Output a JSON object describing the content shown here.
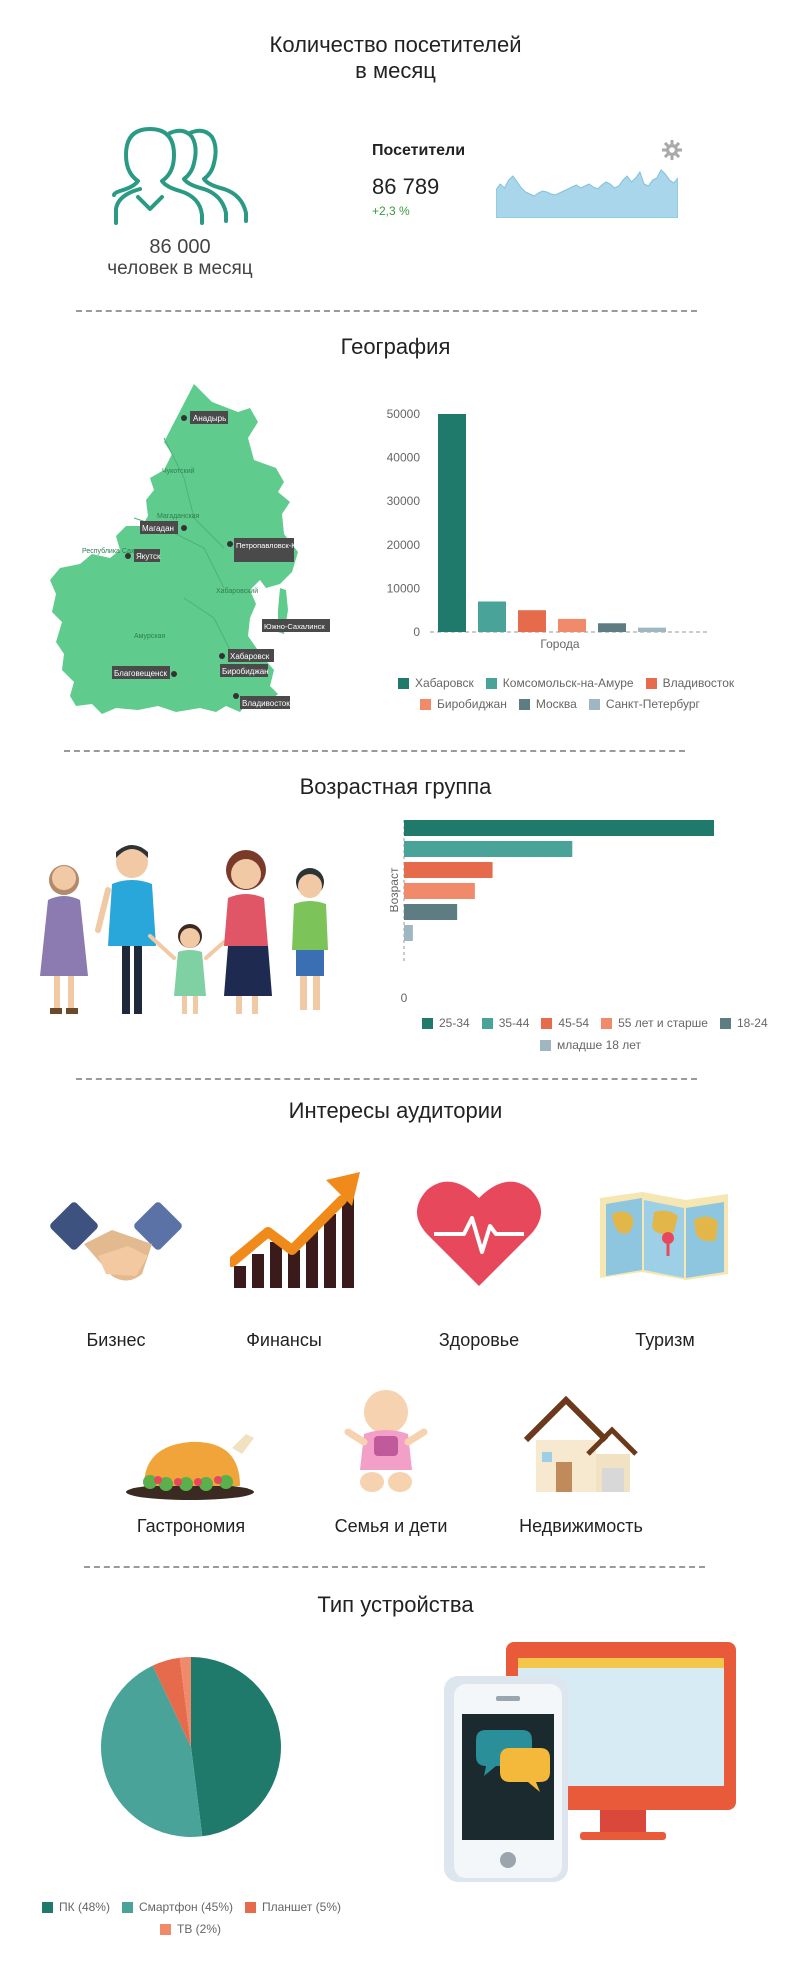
{
  "colors": {
    "teal_dark": "#1f7a6c",
    "teal": "#4aa398",
    "orange_red": "#e66a4c",
    "salmon": "#f08a6a",
    "slate": "#5e7d82",
    "light_blue_gray": "#9fb7c0",
    "green_map": "#5fcb8c",
    "accent_green": "#3a9a40"
  },
  "visitors": {
    "title_line1": "Количество посетителей",
    "title_line2": "в месяц",
    "icon": "people-outline-icon",
    "count_big": "86 000",
    "count_caption": "человек в месяц",
    "widget_label": "Посетители",
    "widget_value": "86 789",
    "widget_change": "+2,3 %",
    "widget_icon": "gear-icon"
  },
  "geography": {
    "title": "География",
    "map_labels": [
      "Анадырь",
      "Магадан",
      "Петропавловск-Камчатский",
      "Якутск",
      "Южно-Сахалинск",
      "Хабаровск",
      "Биробиджан",
      "Благовещенск",
      "Владивосток"
    ]
  },
  "age": {
    "title": "Возрастная группа"
  },
  "interests": {
    "title": "Интересы аудитории",
    "items": [
      "Бизнес",
      "Финансы",
      "Здоровье",
      "Туризм",
      "Гастрономия",
      "Семья и дети",
      "Недвижимость"
    ]
  },
  "devices": {
    "title": "Тип устройства"
  },
  "chart_data": [
    {
      "type": "bar",
      "xlabel": "Города",
      "categories": [
        "Хабаровск",
        "Комсомольск-на-Амуре",
        "Владивосток",
        "Биробиджан",
        "Москва",
        "Санкт-Петербург"
      ],
      "values": [
        50000,
        7000,
        5000,
        3000,
        2000,
        1000
      ],
      "colors": [
        "#1f7a6c",
        "#4aa398",
        "#e66a4c",
        "#f08a6a",
        "#5e7d82",
        "#9fb7c0"
      ],
      "yticks": [
        "0",
        "10000",
        "20000",
        "30000",
        "40000",
        "50000"
      ],
      "ylim": [
        0,
        50000
      ],
      "legend": [
        "Хабаровск",
        "Комсомольск-на-Амуре",
        "Владивосток",
        "Биробиджан",
        "Москва",
        "Санкт-Петербург"
      ],
      "legend_placement": "bottom"
    },
    {
      "type": "bar",
      "orientation": "horizontal",
      "ylabel": "Возраст",
      "categories": [
        "25-34",
        "35-44",
        "45-54",
        "55 лет и старше",
        "18-24",
        "младше 18 лет"
      ],
      "values": [
        35,
        19,
        10,
        8,
        6,
        1
      ],
      "colors": [
        "#1f7a6c",
        "#4aa398",
        "#e66a4c",
        "#f08a6a",
        "#5e7d82",
        "#9fb7c0"
      ],
      "zero_label": "0",
      "legend": [
        "25-34",
        "35-44",
        "45-54",
        "55 лет и старше",
        "18-24",
        "младше 18 лет"
      ],
      "legend_placement": "bottom"
    },
    {
      "type": "pie",
      "categories": [
        "ПК (48%)",
        "Смартфон (45%)",
        "Планшет (5%)",
        "ТВ (2%)"
      ],
      "values": [
        48,
        45,
        5,
        2
      ],
      "colors": [
        "#1f7a6c",
        "#4aa398",
        "#e66a4c",
        "#f08a6a"
      ],
      "legend_placement": "bottom-left"
    },
    {
      "type": "area",
      "values": [
        28,
        34,
        30,
        38,
        42,
        36,
        30,
        26,
        24,
        22,
        25,
        27,
        26,
        24,
        23,
        25,
        27,
        29,
        31,
        33,
        30,
        32,
        34,
        31,
        29,
        33,
        36,
        34,
        30,
        32,
        38,
        42,
        36,
        40,
        46,
        34,
        32,
        38,
        40,
        48,
        44,
        38,
        35,
        40
      ]
    }
  ]
}
